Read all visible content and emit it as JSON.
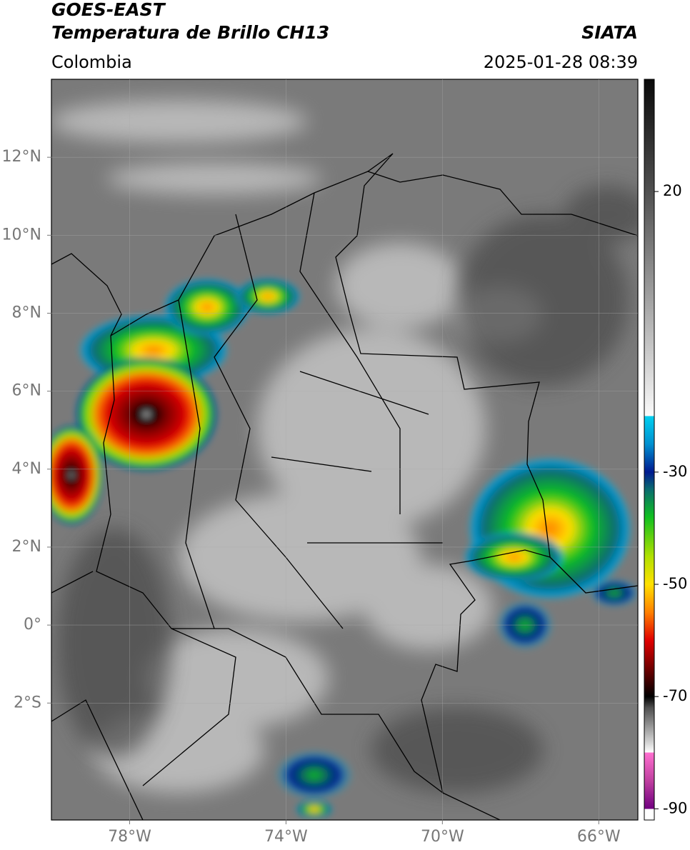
{
  "chart_data": {
    "type": "map",
    "title": "GOES-EAST",
    "subtitle": "Temperatura de Brillo CH13",
    "source": "SIATA",
    "region": "Colombia",
    "date": "2025-01-28 08:39",
    "xlim": [
      -80,
      -65
    ],
    "ylim": [
      -5,
      14
    ],
    "xticks": [
      {
        "value": -78,
        "label": "78°W"
      },
      {
        "value": -74,
        "label": "74°W"
      },
      {
        "value": -70,
        "label": "70°W"
      },
      {
        "value": -66,
        "label": "66°W"
      }
    ],
    "yticks": [
      {
        "value": 12,
        "label": "12°N"
      },
      {
        "value": 10,
        "label": "10°N"
      },
      {
        "value": 8,
        "label": "8°N"
      },
      {
        "value": 6,
        "label": "6°N"
      },
      {
        "value": 4,
        "label": "4°N"
      },
      {
        "value": 2,
        "label": "2°N"
      },
      {
        "value": 0,
        "label": "0°"
      },
      {
        "value": -2,
        "label": "2°S"
      }
    ],
    "grid": true,
    "clim": [
      -92,
      40
    ],
    "cticks": [
      20,
      -30,
      -50,
      -70,
      -90
    ],
    "colormap": [
      {
        "value": 40,
        "color": "#0a0a0a"
      },
      {
        "value": 20,
        "color": "#505050"
      },
      {
        "value": -20,
        "color": "#fafafa"
      },
      {
        "value": -20,
        "color": "#00d0f0"
      },
      {
        "value": -25,
        "color": "#0090d0"
      },
      {
        "value": -30,
        "color": "#001a90"
      },
      {
        "value": -33,
        "color": "#0a6a70"
      },
      {
        "value": -38,
        "color": "#10c020"
      },
      {
        "value": -45,
        "color": "#b0e000"
      },
      {
        "value": -50,
        "color": "#ffe000"
      },
      {
        "value": -55,
        "color": "#ff8000"
      },
      {
        "value": -60,
        "color": "#e00000"
      },
      {
        "value": -65,
        "color": "#700000"
      },
      {
        "value": -70,
        "color": "#000000"
      },
      {
        "value": -72,
        "color": "#505050"
      },
      {
        "value": -78,
        "color": "#d0d0d0"
      },
      {
        "value": -80,
        "color": "#ffffff"
      },
      {
        "value": -80,
        "color": "#ff70d0"
      },
      {
        "value": -85,
        "color": "#c040a0"
      },
      {
        "value": -90,
        "color": "#700080"
      },
      {
        "value": -90,
        "color": "#ffffff"
      },
      {
        "value": -92,
        "color": "#ffffff"
      }
    ]
  }
}
